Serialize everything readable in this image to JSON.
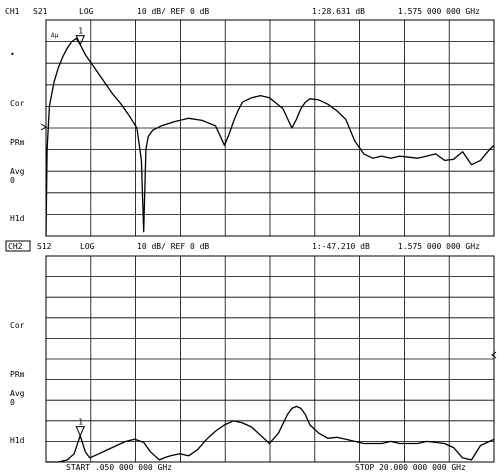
{
  "chart_data": [
    {
      "type": "line",
      "channel": "CH1",
      "param": "S21",
      "format": "LOG",
      "scale": "10 dB/ REF 0 dB",
      "marker_readout": "1:28.631 dB",
      "marker_freq": "1.575 000 000 GHz",
      "marker_label": "1",
      "marker_mode_label": "Δμ",
      "side_labels": [
        "•",
        "Cor",
        "PRm",
        "Avg\n0",
        "H1d"
      ],
      "xlim": [
        0.05,
        20.0
      ],
      "ylim": [
        -60,
        40
      ],
      "x": [
        0.05,
        0.1,
        0.2,
        0.4,
        0.6,
        0.8,
        1.0,
        1.2,
        1.4,
        1.575,
        1.8,
        2.2,
        2.6,
        3.0,
        3.4,
        3.8,
        4.1,
        4.3,
        4.4,
        4.5,
        4.6,
        4.8,
        5.2,
        5.8,
        6.4,
        7.0,
        7.6,
        8.0,
        8.2,
        8.4,
        8.6,
        8.8,
        9.2,
        9.6,
        10.0,
        10.6,
        11.0,
        11.2,
        11.4,
        11.6,
        11.8,
        12.2,
        12.6,
        13.0,
        13.4,
        13.8,
        14.2,
        14.6,
        15.0,
        15.4,
        15.8,
        16.2,
        16.6,
        17.0,
        17.4,
        17.8,
        18.2,
        18.6,
        19.0,
        19.4,
        19.8,
        20.0
      ],
      "y": [
        -60,
        -20,
        0,
        11,
        18,
        23,
        27,
        30,
        31.5,
        28.6,
        24,
        18,
        12,
        6,
        1,
        -5,
        -10,
        -25,
        -58,
        -20,
        -14,
        -11,
        -9,
        -7,
        -5.5,
        -6.5,
        -9,
        -18,
        -13,
        -7,
        -2,
        2,
        4,
        5,
        4,
        -1,
        -10,
        -6,
        -1,
        2,
        3.5,
        3,
        1,
        -2,
        -6,
        -16,
        -22,
        -24,
        -23,
        -24,
        -23,
        -23.5,
        -24,
        -23,
        -22,
        -25,
        -24.5,
        -21,
        -27,
        -25,
        -20,
        -18
      ]
    },
    {
      "type": "line",
      "channel": "CH2",
      "param": "S12",
      "format": "LOG",
      "scale": "10 dB/ REF 0 dB",
      "marker_readout": "1:-47.210 dB",
      "marker_freq": "1.575 000 000 GHz",
      "marker_label": "1",
      "side_labels": [
        "Cor",
        "PRm",
        "Avg\n0",
        "H1d"
      ],
      "start": "START .050 000 000 GHz",
      "stop": "STOP 20.000 000 000 GHz",
      "xlim": [
        0.05,
        20.0
      ],
      "ylim": [
        -60,
        40
      ],
      "x": [
        0.05,
        0.6,
        1.0,
        1.3,
        1.575,
        1.8,
        2.0,
        2.4,
        2.8,
        3.2,
        3.6,
        4.0,
        4.4,
        4.7,
        4.9,
        5.1,
        5.3,
        5.6,
        6.0,
        6.4,
        6.8,
        7.2,
        7.6,
        8.0,
        8.4,
        8.8,
        9.2,
        9.6,
        10.0,
        10.4,
        10.8,
        11.0,
        11.2,
        11.4,
        11.6,
        11.8,
        12.2,
        12.6,
        13.0,
        13.4,
        13.8,
        14.2,
        14.6,
        15.0,
        15.4,
        15.8,
        16.2,
        16.6,
        17.0,
        17.4,
        17.8,
        18.2,
        18.6,
        19.0,
        19.4,
        19.8,
        20.0
      ],
      "y": [
        -60,
        -60,
        -59,
        -56,
        -47.2,
        -55,
        -58,
        -56,
        -54,
        -52,
        -50,
        -49,
        -50.5,
        -55,
        -57,
        -59,
        -58,
        -57,
        -56,
        -57,
        -54,
        -49,
        -45,
        -42,
        -40,
        -41,
        -43,
        -47,
        -51,
        -46,
        -37,
        -34,
        -33,
        -34,
        -37,
        -42,
        -46,
        -48.5,
        -48,
        -49,
        -50,
        -51,
        -51,
        -51,
        -50,
        -51,
        -51,
        -51,
        -50,
        -50.5,
        -51,
        -53,
        -58,
        -59,
        -52,
        -50,
        -49
      ]
    }
  ]
}
